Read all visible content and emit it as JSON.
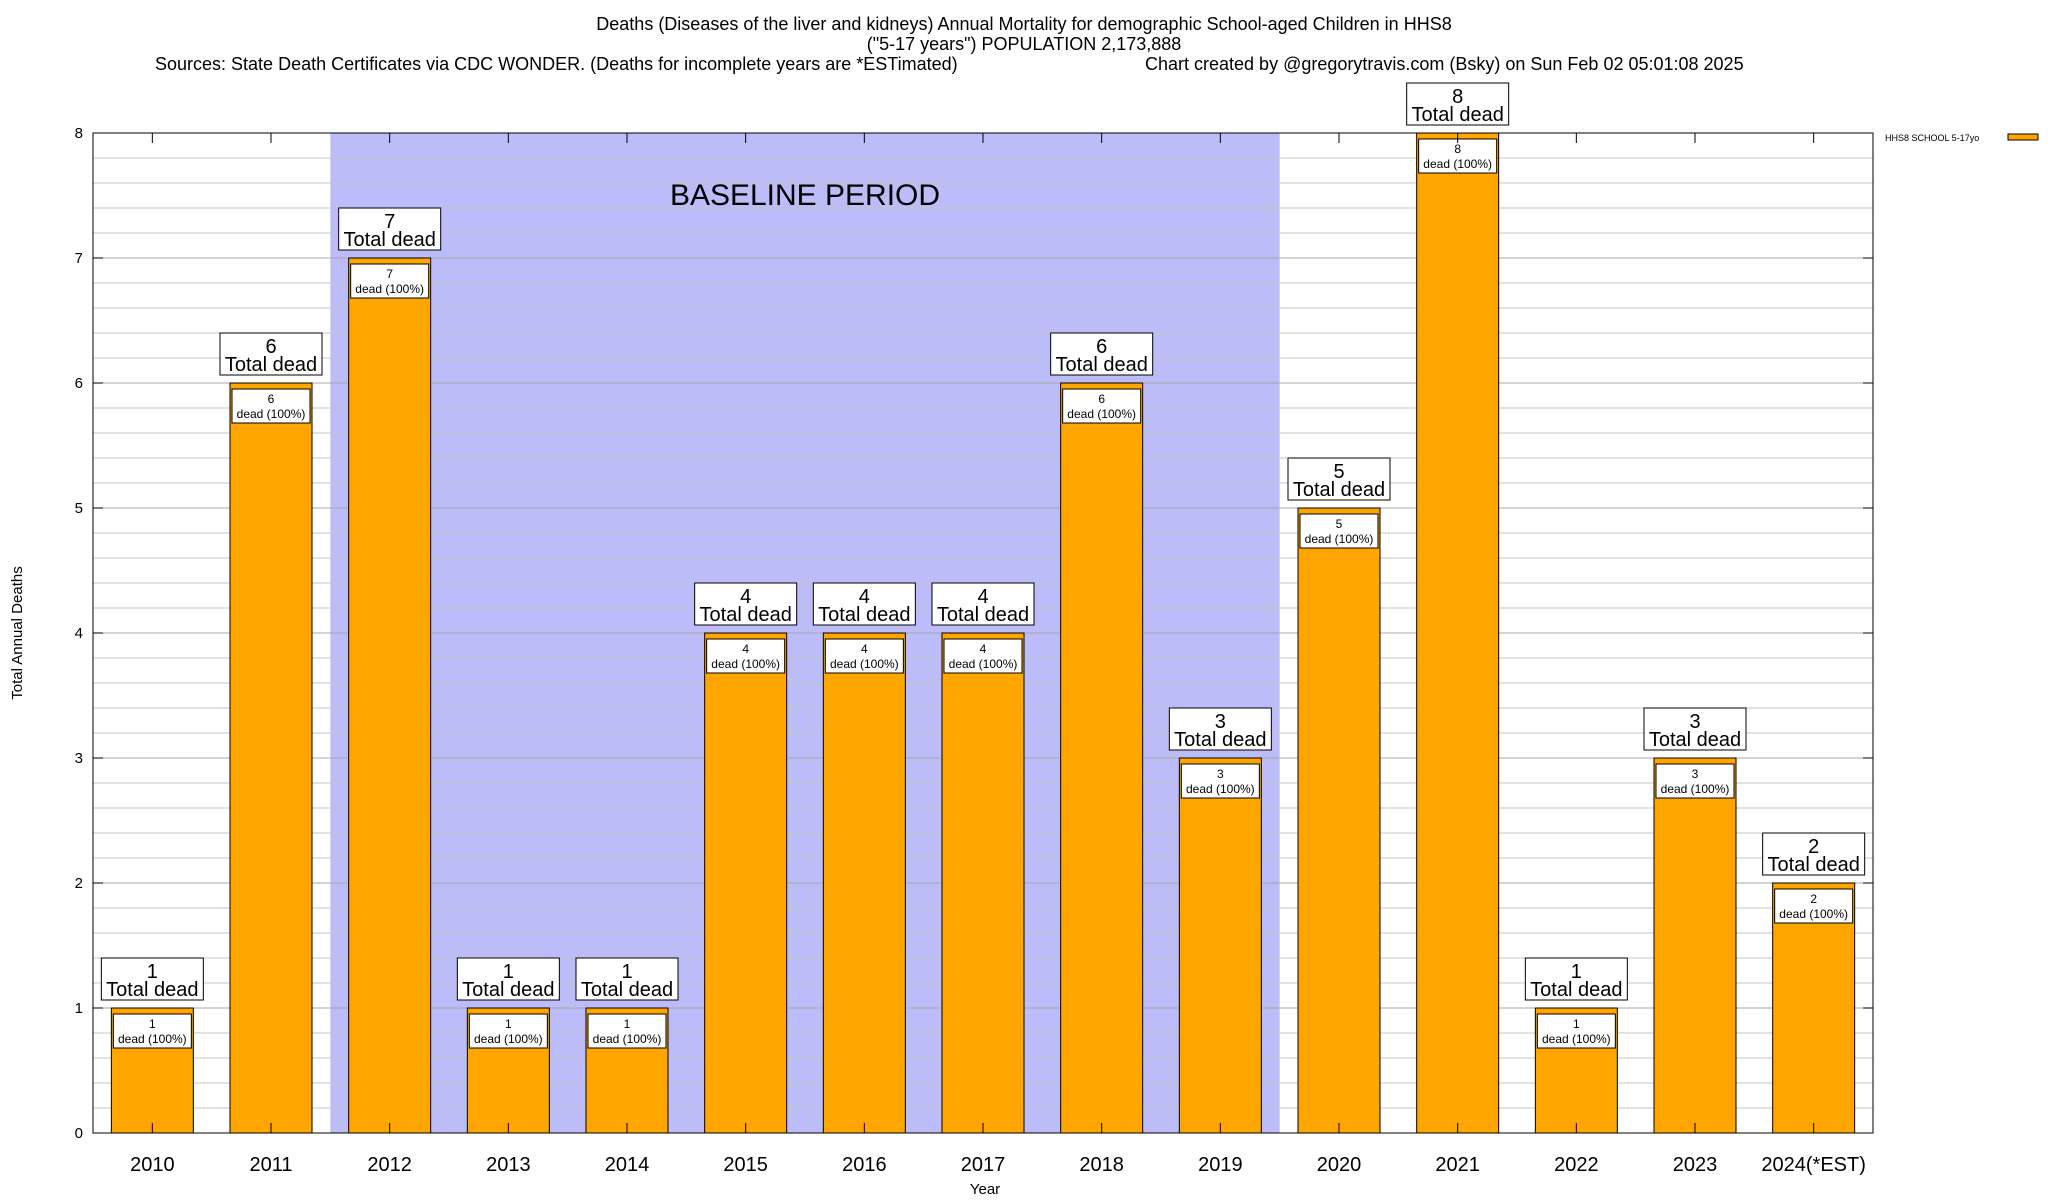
{
  "chart_data": {
    "type": "bar",
    "title_lines": [
      "Deaths (Diseases of the liver and kidneys) Annual Mortality for demographic School-aged Children in HHS8",
      "(\"5-17 years\") POPULATION 2,173,888"
    ],
    "sources": "Sources: State Death Certificates via CDC WONDER. (Deaths for incomplete years are *ESTimated)",
    "credit": "Chart created by @gregorytravis.com (Bsky) on Sun Feb 02 05:01:08 2025",
    "xlabel": "Year",
    "ylabel": "Total Annual Deaths",
    "ylim": [
      0,
      8
    ],
    "y_ticks": [
      0,
      1,
      2,
      3,
      4,
      5,
      6,
      7,
      8
    ],
    "y_minor_step": 0.2,
    "grid": true,
    "legend": {
      "position": "top-right",
      "entries": [
        "HHS8 SCHOOL 5-17yo"
      ]
    },
    "categories": [
      "2010",
      "2011",
      "2012",
      "2013",
      "2014",
      "2015",
      "2016",
      "2017",
      "2018",
      "2019",
      "2020",
      "2021",
      "2022",
      "2023",
      "2024(*EST)"
    ],
    "series": [
      {
        "name": "HHS8 SCHOOL 5-17yo",
        "color": "#ffa500",
        "values": [
          1,
          6,
          7,
          1,
          1,
          4,
          4,
          4,
          6,
          3,
          5,
          8,
          1,
          3,
          2
        ]
      }
    ],
    "label_text": {
      "total_suffix": "Total dead",
      "inner_suffix": "dead (100%)"
    },
    "baseline_period": {
      "label": "BASELINE PERIOD",
      "start": "2012",
      "end": "2019",
      "color": "#bcbcf8"
    }
  }
}
